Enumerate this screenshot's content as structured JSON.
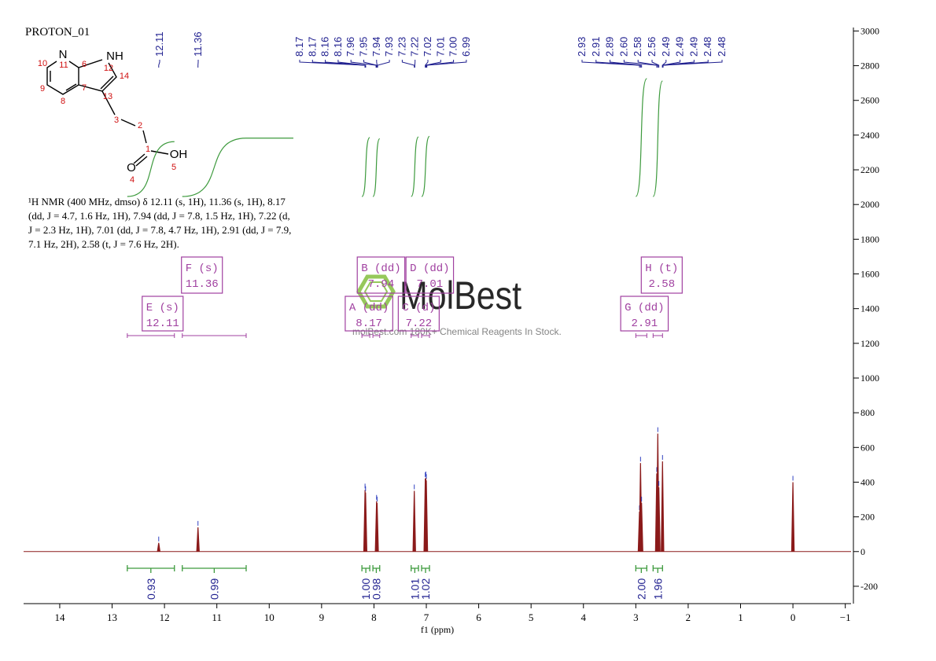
{
  "chart_data": {
    "type": "spectrum",
    "title": "PROTON_01",
    "xlabel": "f1 (ppm)",
    "xlim": [
      14.69,
      -1.11
    ],
    "xticks": [
      14,
      13,
      12,
      11,
      10,
      9,
      8,
      7,
      6,
      5,
      4,
      3,
      2,
      1,
      0,
      {
        "value": -1,
        "label": "−1"
      }
    ],
    "ylim": [
      -300,
      3020
    ],
    "yticks": [
      -200,
      0,
      200,
      400,
      600,
      800,
      1000,
      1200,
      1400,
      1600,
      1800,
      2000,
      2200,
      2400,
      2600,
      2800,
      3000
    ],
    "color": "#8b1a1a",
    "label_color": "#1f1f8f",
    "integral_color": "#3d9a3d",
    "multiplet_color": "#a040a0",
    "x": [
      12.11,
      11.36,
      8.17,
      8.16,
      7.95,
      7.94,
      7.23,
      7.02,
      7.01,
      7.0,
      2.93,
      2.91,
      2.89,
      2.6,
      2.58,
      2.56,
      2.49,
      0
    ],
    "values": [
      50,
      140,
      355,
      340,
      290,
      280,
      350,
      420,
      425,
      410,
      230,
      510,
      280,
      450,
      680,
      370,
      520,
      400
    ],
    "peak_labels": [
      "12.11",
      "11.36",
      "8.17",
      "8.17",
      "8.16",
      "8.16",
      "7.96",
      "7.95",
      "7.94",
      "7.93",
      "7.23",
      "7.22",
      "7.02",
      "7.01",
      "7.00",
      "6.99",
      "2.93",
      "2.91",
      "2.89",
      "2.60",
      "2.58",
      "2.56",
      "2.49",
      "2.49",
      "2.49",
      "2.48",
      "2.48"
    ],
    "multiplets": [
      {
        "name": "E (s)",
        "shift": 12.11,
        "range": [
          12.71,
          11.81
        ],
        "integral": 0.93
      },
      {
        "name": "F (s)",
        "shift": 11.36,
        "range": [
          11.66,
          10.44
        ],
        "integral": 0.99
      },
      {
        "name": "A (dd)",
        "shift": 8.17,
        "range": [
          8.23,
          8.08
        ],
        "integral": {
          "value": 1,
          "label": "1.00"
        }
      },
      {
        "name": "B (dd)",
        "shift": 7.94,
        "range": [
          8.02,
          7.89
        ],
        "integral": 0.98
      },
      {
        "name": "C (d)",
        "shift": 7.22,
        "range": [
          7.29,
          7.15
        ],
        "integral": 1.01
      },
      {
        "name": "D (dd)",
        "shift": 7.01,
        "range": [
          7.09,
          6.94
        ],
        "integral": 1.02
      },
      {
        "name": "G (dd)",
        "shift": 2.91,
        "range": [
          3.0,
          2.79
        ],
        "integral": {
          "value": 2,
          "label": "2.00"
        }
      },
      {
        "name": "H (t)",
        "shift": 2.58,
        "range": [
          2.67,
          2.49
        ],
        "integral": 1.96
      }
    ]
  },
  "description": [
    "¹H NMR (400 MHz, dmso) δ 12.11 (s, 1H), 11.36 (s, 1H), 8.17",
    "(dd, J = 4.7, 1.6 Hz, 1H), 7.94 (dd, J = 7.8, 1.5 Hz, 1H), 7.22 (d,",
    "J = 2.3 Hz, 1H), 7.01 (dd, J = 7.8, 4.7 Hz, 1H), 2.91 (dd, J = 7.9,",
    "7.1 Hz, 2H), 2.58 (t, J = 7.6 Hz, 2H)."
  ],
  "structure": {
    "atoms": [
      "N",
      "11",
      "6",
      "NH",
      "12",
      "14",
      "7",
      "13",
      "10",
      "9",
      "8",
      "3",
      "2",
      "1",
      "O",
      "4",
      "OH",
      "5"
    ]
  },
  "watermark": {
    "brand": "MolBest",
    "tagline": "molBest.com 180K+ Chemical Reagents In Stock."
  }
}
